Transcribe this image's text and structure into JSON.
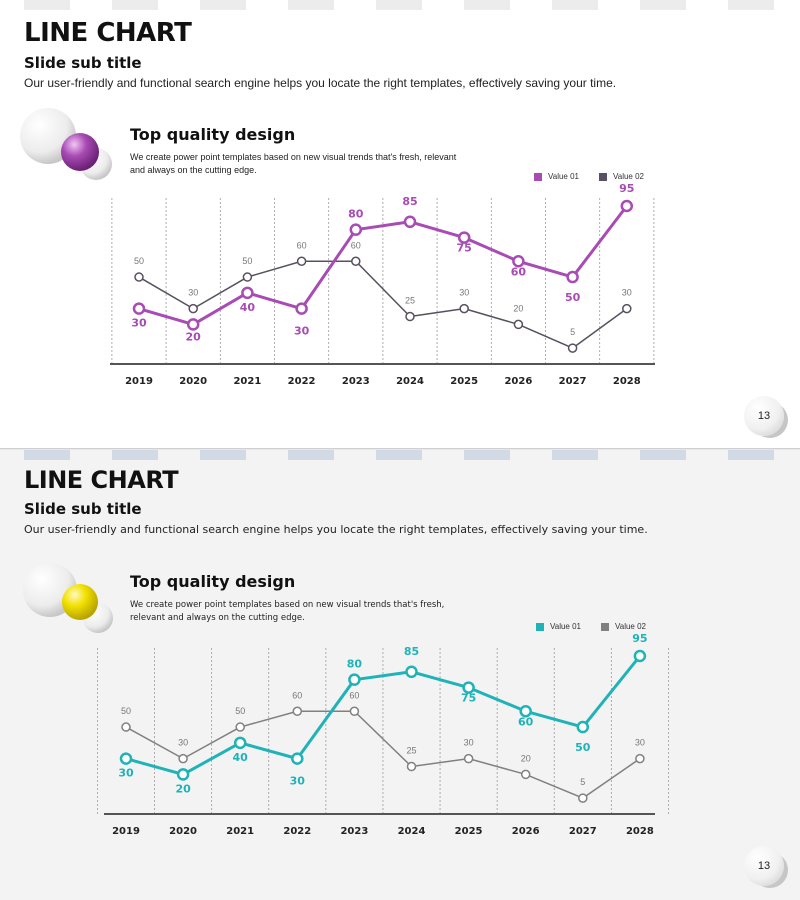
{
  "slides": [
    {
      "title": "LINE CHART",
      "subtitle": "Slide sub title",
      "description": "Our user-friendly and functional search engine helps you locate the right templates, effectively saving your time.",
      "heading": "Top quality design",
      "text": "We create power point templates based on new visual trends that's fresh, relevant and always on the cutting edge.",
      "page_number": "13",
      "accent_color": "#a84bb4",
      "secondary_color": "#575060",
      "ball_color": "#a84bb4"
    },
    {
      "title": "LINE CHART",
      "subtitle": "Slide sub title",
      "description": "Our user-friendly and functional search engine helps you locate the right templates, effectively saving your time.",
      "heading": "Top quality design",
      "text": "We create power point templates based on new visual trends that's fresh, relevant and always on the cutting edge.",
      "page_number": "13",
      "accent_color": "#1fb3b8",
      "secondary_color": "#808080",
      "ball_color": "#f2e000"
    }
  ],
  "chart_data": [
    {
      "type": "line",
      "categories": [
        "2019",
        "2020",
        "2021",
        "2022",
        "2023",
        "2024",
        "2025",
        "2026",
        "2027",
        "2028"
      ],
      "series": [
        {
          "name": "Value 01",
          "values": [
            30,
            20,
            40,
            30,
            80,
            85,
            75,
            60,
            50,
            95
          ],
          "color": "#a84bb4"
        },
        {
          "name": "Value 02",
          "values": [
            50,
            30,
            50,
            60,
            60,
            25,
            30,
            20,
            5,
            30
          ],
          "color": "#575060"
        }
      ],
      "ylim": [
        0,
        100
      ],
      "grid": "vertical dashed",
      "legend": "top-right"
    },
    {
      "type": "line",
      "categories": [
        "2019",
        "2020",
        "2021",
        "2022",
        "2023",
        "2024",
        "2025",
        "2026",
        "2027",
        "2028"
      ],
      "series": [
        {
          "name": "Value 01",
          "values": [
            30,
            20,
            40,
            30,
            80,
            85,
            75,
            60,
            50,
            95
          ],
          "color": "#1fb3b8"
        },
        {
          "name": "Value 02",
          "values": [
            50,
            30,
            50,
            60,
            60,
            25,
            30,
            20,
            5,
            30
          ],
          "color": "#808080"
        }
      ],
      "ylim": [
        0,
        100
      ],
      "grid": "vertical dashed",
      "legend": "top-right"
    }
  ]
}
